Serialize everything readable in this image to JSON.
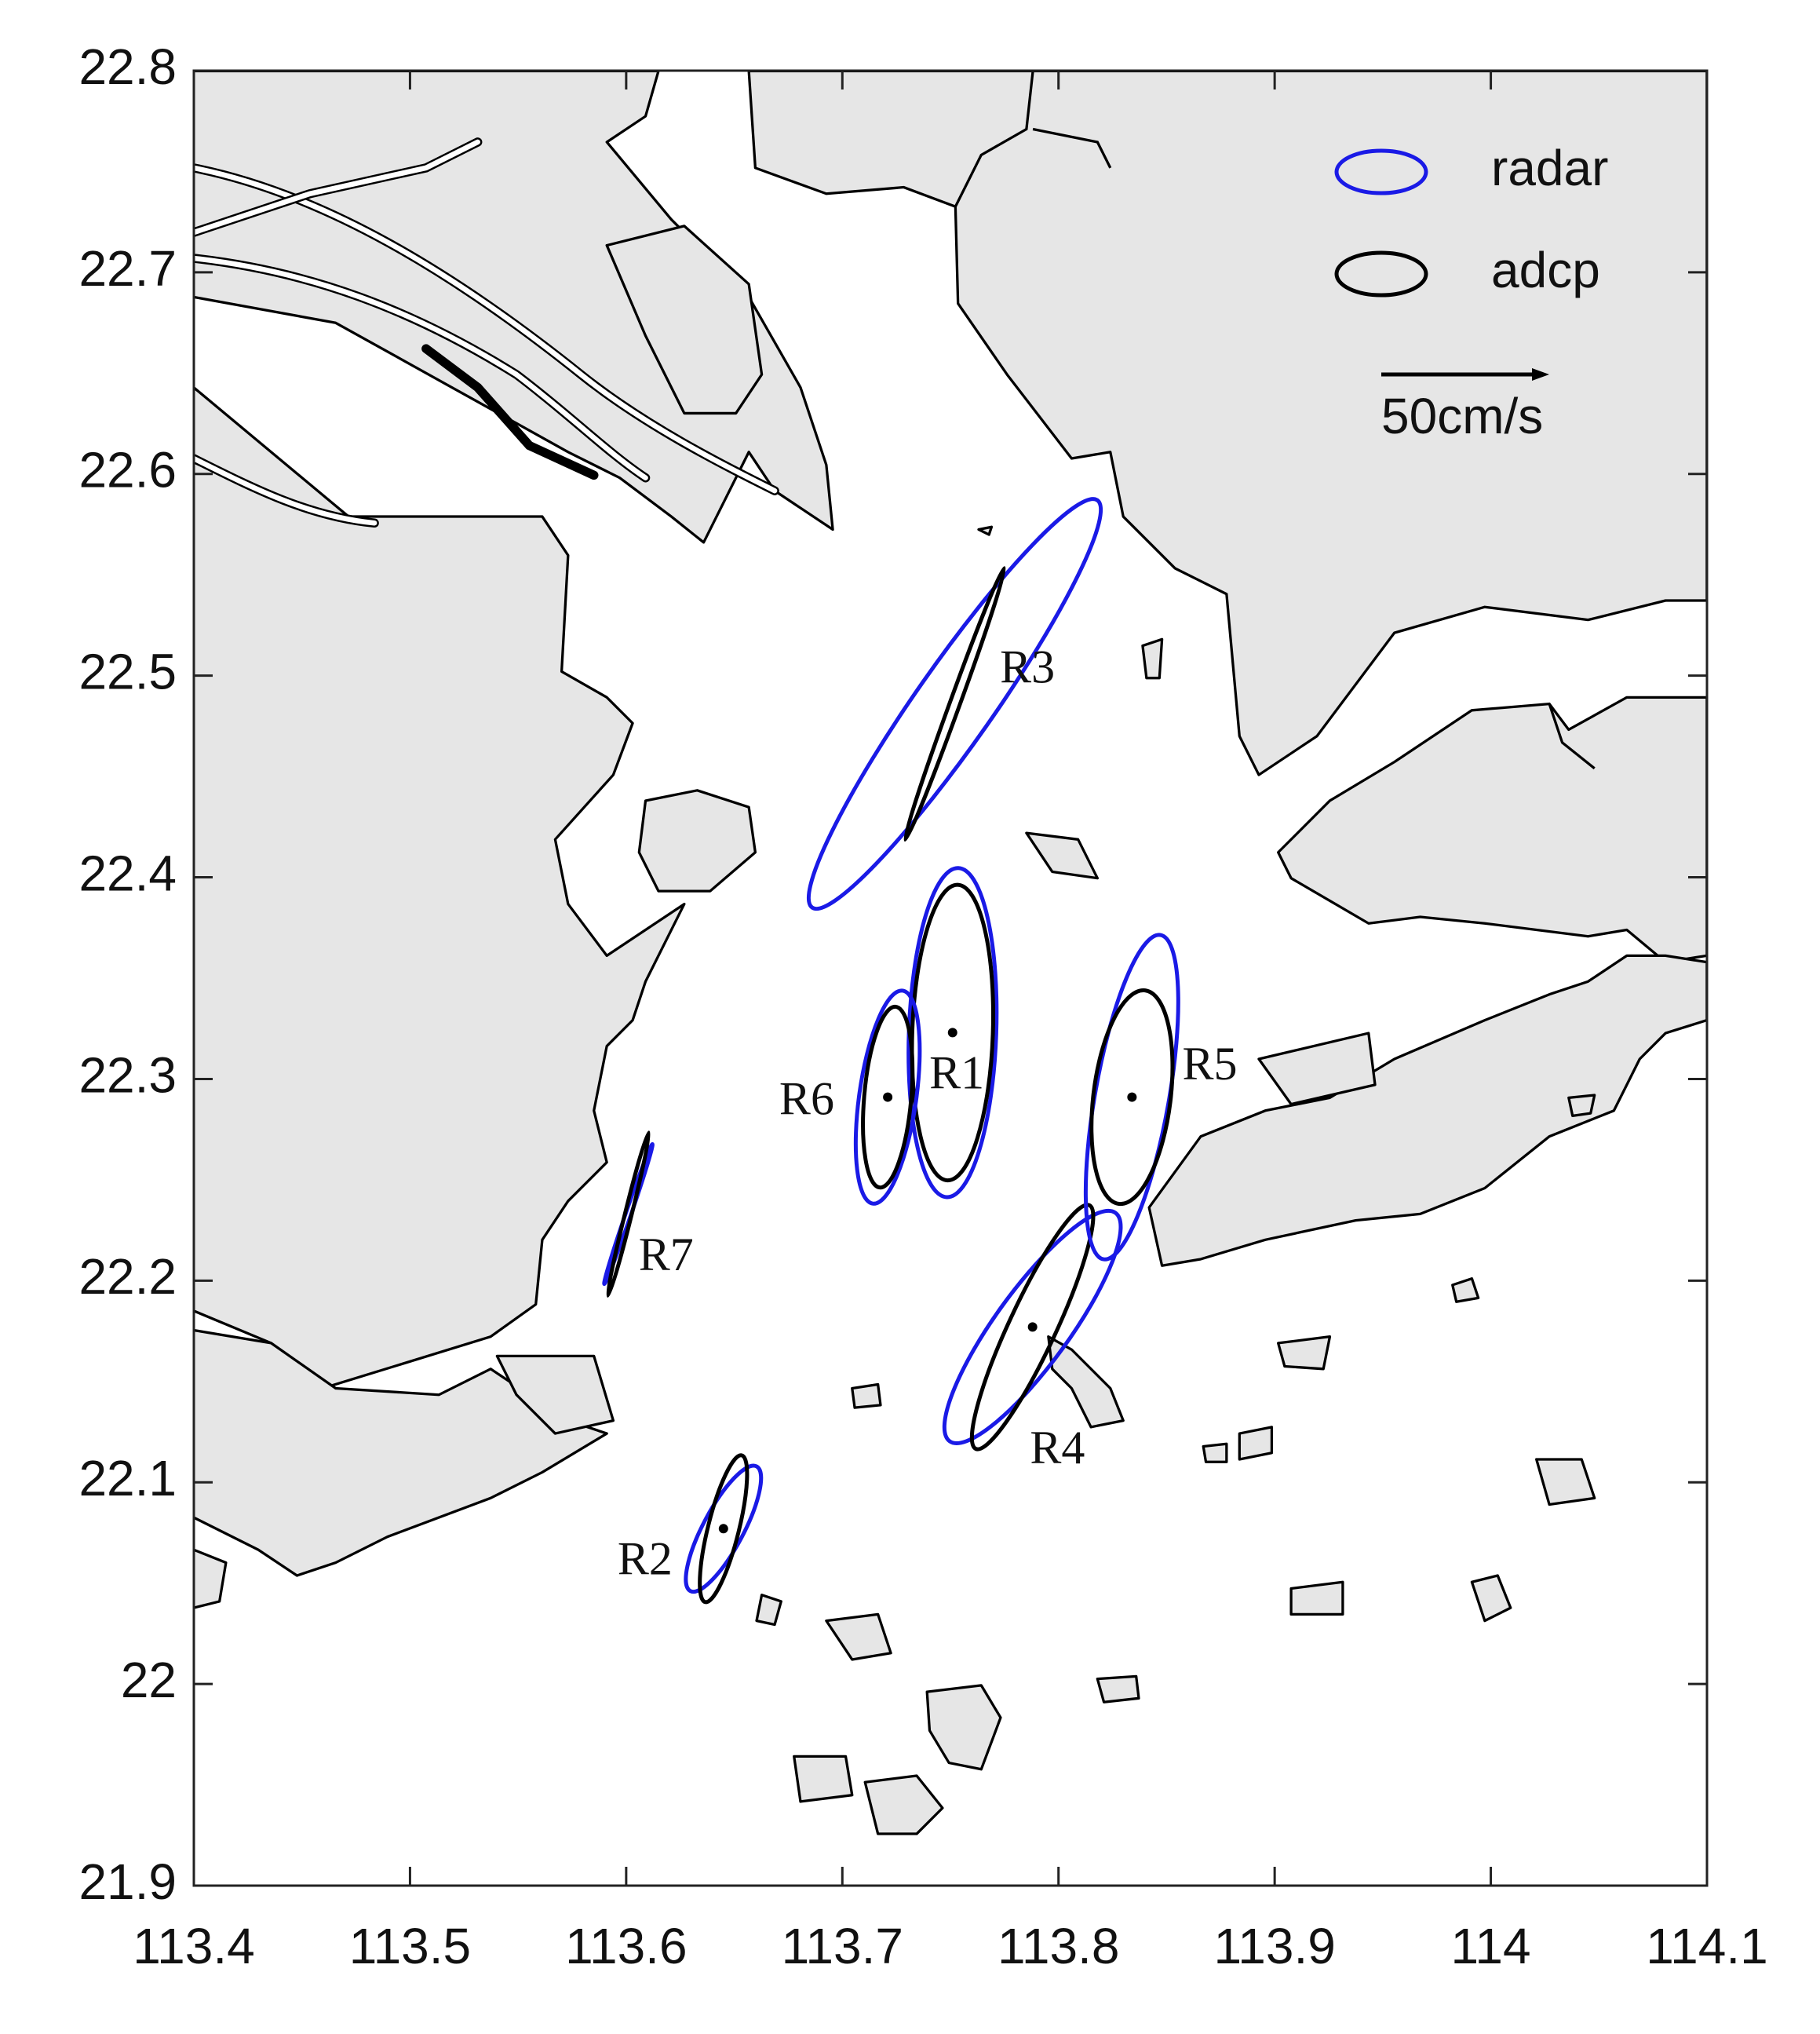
{
  "chart_data": {
    "type": "ellipse",
    "xlim": [
      113.4,
      114.1
    ],
    "ylim": [
      21.9,
      22.8
    ],
    "xticks": [
      113.4,
      113.5,
      113.6,
      113.7,
      113.8,
      113.9,
      114,
      114.1
    ],
    "yticks": [
      21.9,
      22,
      22.1,
      22.2,
      22.3,
      22.4,
      22.5,
      22.6,
      22.7,
      22.8
    ],
    "series": [
      {
        "name": "radar",
        "color": "#1a1ae6"
      },
      {
        "name": "adcp",
        "color": "#000000"
      }
    ],
    "scale": {
      "value": 50,
      "label": "50cm/s"
    },
    "stations": [
      {
        "name": "R1",
        "x": 113.751,
        "y": 22.323,
        "marker": true,
        "ellipses": [
          {
            "major": 49,
            "minor": 13,
            "angle": 88
          },
          {
            "major": 44,
            "minor": 12,
            "angle": 88
          }
        ]
      },
      {
        "name": "R2",
        "x": 113.645,
        "y": 22.077,
        "marker": true,
        "ellipses": [
          {
            "major": 21,
            "minor": 6,
            "angle": 62
          },
          {
            "major": 22.5,
            "minor": 4.6,
            "angle": 76
          }
        ]
      },
      {
        "name": "R3",
        "x": 113.752,
        "y": 22.486,
        "marker": false,
        "ellipses": [
          {
            "major": 74,
            "minor": 11.5,
            "angle": 55
          },
          {
            "major": 43,
            "minor": 1.5,
            "angle": 70
          }
        ]
      },
      {
        "name": "R4",
        "x": 113.788,
        "y": 22.177,
        "marker": true,
        "ellipses": [
          {
            "major": 42,
            "minor": 11,
            "angle": 54
          },
          {
            "major": 40,
            "minor": 7,
            "angle": 65
          }
        ]
      },
      {
        "name": "R5",
        "x": 113.834,
        "y": 22.291,
        "marker": true,
        "ellipses": [
          {
            "major": 49,
            "minor": 11,
            "angle": 80
          },
          {
            "major": 32,
            "minor": 11.5,
            "angle": 83
          }
        ]
      },
      {
        "name": "R6",
        "x": 113.721,
        "y": 22.291,
        "marker": true,
        "ellipses": [
          {
            "major": 32,
            "minor": 8.5,
            "angle": 82
          },
          {
            "major": 27,
            "minor": 7,
            "angle": 85
          }
        ]
      },
      {
        "name": "R7",
        "x": 113.601,
        "y": 22.233,
        "marker": false,
        "ellipses": [
          {
            "major": 22,
            "minor": 0.8,
            "angle": 71
          },
          {
            "major": 25,
            "minor": 1,
            "angle": 76
          }
        ]
      }
    ]
  }
}
